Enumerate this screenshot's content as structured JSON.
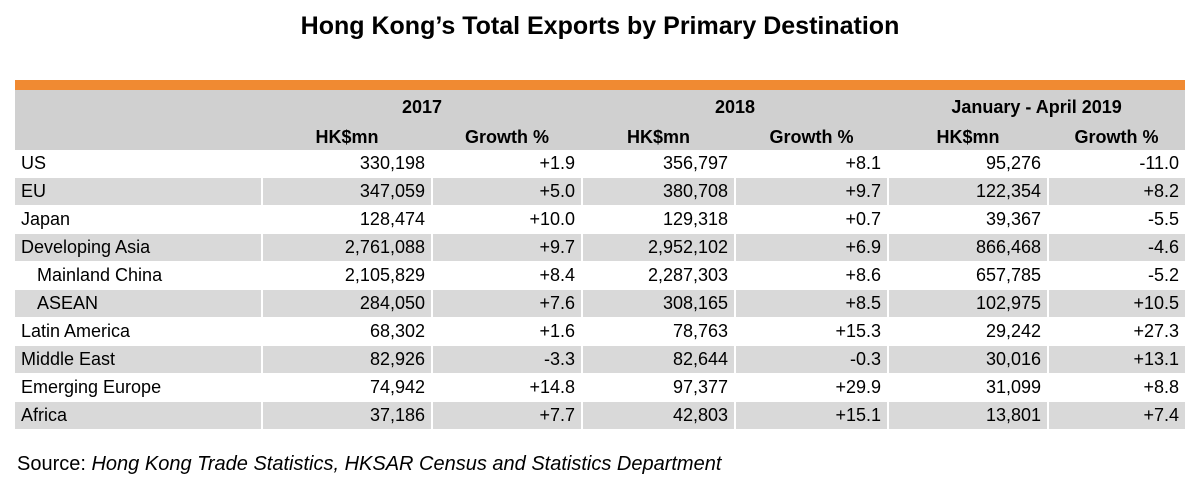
{
  "chart_data": {
    "type": "table",
    "title": "Hong Kong’s Total Exports by Primary Destination",
    "column_groups": [
      {
        "label": "2017",
        "columns": [
          "HK$mn",
          "Growth %"
        ]
      },
      {
        "label": "2018",
        "columns": [
          "HK$mn",
          "Growth %"
        ]
      },
      {
        "label": "January - April 2019",
        "columns": [
          "HK$mn",
          "Growth %"
        ]
      }
    ],
    "rows": [
      {
        "label": "US",
        "indent": false,
        "values": [
          "330,198",
          "+1.9",
          "356,797",
          "+8.1",
          "95,276",
          "-11.0"
        ]
      },
      {
        "label": "EU",
        "indent": false,
        "values": [
          "347,059",
          "+5.0",
          "380,708",
          "+9.7",
          "122,354",
          "+8.2"
        ]
      },
      {
        "label": "Japan",
        "indent": false,
        "values": [
          "128,474",
          "+10.0",
          "129,318",
          "+0.7",
          "39,367",
          "-5.5"
        ]
      },
      {
        "label": "Developing Asia",
        "indent": false,
        "values": [
          "2,761,088",
          "+9.7",
          "2,952,102",
          "+6.9",
          "866,468",
          "-4.6"
        ]
      },
      {
        "label": "Mainland China",
        "indent": true,
        "values": [
          "2,105,829",
          "+8.4",
          "2,287,303",
          "+8.6",
          "657,785",
          "-5.2"
        ]
      },
      {
        "label": "ASEAN",
        "indent": true,
        "values": [
          "284,050",
          "+7.6",
          "308,165",
          "+8.5",
          "102,975",
          "+10.5"
        ]
      },
      {
        "label": "Latin America",
        "indent": false,
        "values": [
          "68,302",
          "+1.6",
          "78,763",
          "+15.3",
          "29,242",
          "+27.3"
        ]
      },
      {
        "label": "Middle East",
        "indent": false,
        "values": [
          "82,926",
          "-3.3",
          "82,644",
          "-0.3",
          "30,016",
          "+13.1"
        ]
      },
      {
        "label": "Emerging Europe",
        "indent": false,
        "values": [
          "74,942",
          "+14.8",
          "97,377",
          "+29.9",
          "31,099",
          "+8.8"
        ]
      },
      {
        "label": "Africa",
        "indent": false,
        "values": [
          "37,186",
          "+7.7",
          "42,803",
          "+15.1",
          "13,801",
          "+7.4"
        ]
      }
    ]
  },
  "source": {
    "prefix": "Source: ",
    "text": "Hong Kong Trade Statistics, HKSAR Census and Statistics Department"
  },
  "colors": {
    "accent_bar": "#f08a32",
    "header_bg": "#d0d0d0",
    "row_shaded": "#d9d9d9",
    "row_plain": "#ffffff"
  }
}
